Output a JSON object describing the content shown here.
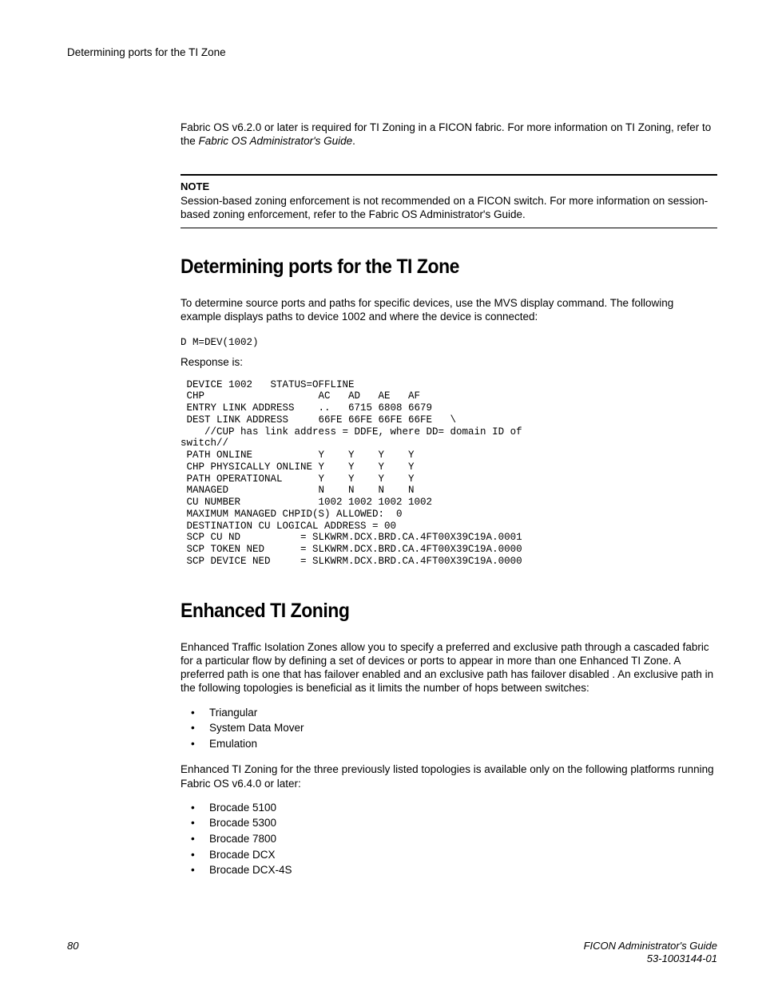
{
  "header": {
    "running_title": "Determining ports for the TI Zone"
  },
  "intro": {
    "text_a": "Fabric OS v6.2.0 or later is required for TI Zoning in a FICON fabric. For more information on TI Zoning, refer to the ",
    "text_italic": "Fabric OS Administrator's Guide",
    "text_b": "."
  },
  "note": {
    "label": "NOTE",
    "text": "Session-based zoning enforcement is not recommended on a FICON switch. For more information on session-based zoning enforcement, refer to the Fabric OS Administrator's Guide."
  },
  "section1": {
    "title": "Determining ports for the TI Zone",
    "para": "To determine source ports and paths for specific devices, use the MVS display command. The following example displays paths to device 1002 and where the device is connected:",
    "cmd": "D M=DEV(1002)",
    "response_label": "Response is:",
    "code": " DEVICE 1002   STATUS=OFFLINE\n CHP                   AC   AD   AE   AF\n ENTRY LINK ADDRESS    ..   6715 6808 6679\n DEST LINK ADDRESS     66FE 66FE 66FE 66FE   \\\n    //CUP has link address = DDFE, where DD= domain ID of\nswitch//\n PATH ONLINE           Y    Y    Y    Y\n CHP PHYSICALLY ONLINE Y    Y    Y    Y\n PATH OPERATIONAL      Y    Y    Y    Y\n MANAGED               N    N    N    N\n CU NUMBER             1002 1002 1002 1002\n MAXIMUM MANAGED CHPID(S) ALLOWED:  0\n DESTINATION CU LOGICAL ADDRESS = 00\n SCP CU ND          = SLKWRM.DCX.BRD.CA.4FT00X39C19A.0001\n SCP TOKEN NED      = SLKWRM.DCX.BRD.CA.4FT00X39C19A.0000\n SCP DEVICE NED     = SLKWRM.DCX.BRD.CA.4FT00X39C19A.0000"
  },
  "section2": {
    "title": "Enhanced TI Zoning",
    "para1": "Enhanced Traffic Isolation Zones allow you to specify a preferred and exclusive path through a cascaded fabric for a particular flow by defining a set of devices or ports to appear in more than one Enhanced TI Zone. A preferred path is one that has failover enabled and an exclusive path has failover disabled . An exclusive path in the following topologies is beneficial as it limits the number of hops between switches:",
    "list1": [
      "Triangular",
      "System Data Mover",
      "Emulation"
    ],
    "para2": "Enhanced TI Zoning for the three previously listed topologies is available only on the following platforms running Fabric OS v6.4.0 or later:",
    "list2": [
      "Brocade 5100",
      "Brocade 5300",
      "Brocade 7800",
      "Brocade DCX",
      "Brocade DCX-4S"
    ]
  },
  "footer": {
    "page": "80",
    "guide": "FICON Administrator's Guide",
    "docnum": "53-1003144-01"
  }
}
